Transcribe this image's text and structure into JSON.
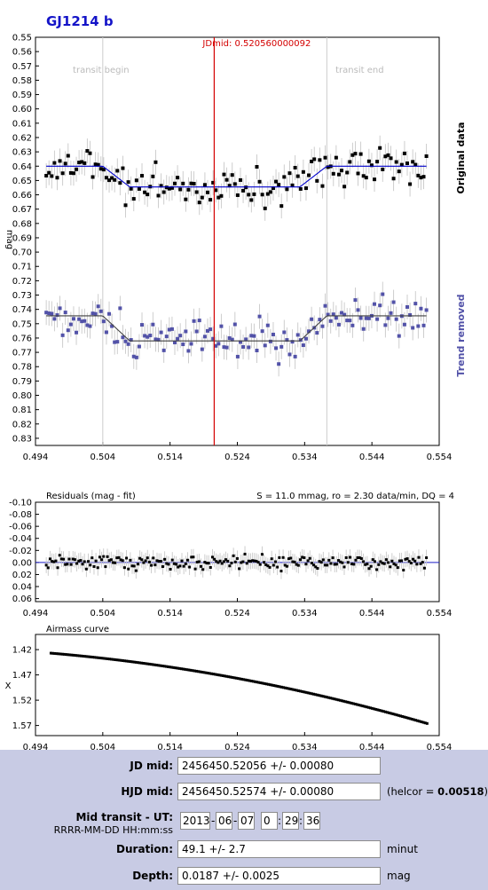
{
  "chart_data": [
    {
      "type": "scatter",
      "title": "GJ1214 b",
      "xlabel": "",
      "ylabel": "mag",
      "xlim": [
        0.494,
        0.554
      ],
      "ylim": [
        0.55,
        0.835
      ],
      "y_inverted": true,
      "x_ticks": [
        "0.494",
        "0.504",
        "0.514",
        "0.524",
        "0.534",
        "0.544",
        "0.554"
      ],
      "y_ticks": [
        "0.55",
        "0.56",
        "0.57",
        "0.58",
        "0.59",
        "0.60",
        "0.61",
        "0.62",
        "0.63",
        "0.64",
        "0.65",
        "0.66",
        "0.67",
        "0.68",
        "0.69",
        "0.70",
        "0.71",
        "0.72",
        "0.73",
        "0.74",
        "0.75",
        "0.76",
        "0.77",
        "0.78",
        "0.79",
        "0.80",
        "0.81",
        "0.82",
        "0.83"
      ],
      "annotations": {
        "jdmid": "JDmid: 0.520560000092",
        "transit_begin": "transit begin",
        "transit_end": "transit end"
      },
      "markers": {
        "jdmid_x": 0.52056,
        "transit_begin_x": 0.504,
        "transit_end_x": 0.5373
      },
      "series": [
        {
          "name": "Original data",
          "color": "#000000",
          "baseline": 0.64,
          "depth": 0.0145,
          "noise": 0.013
        },
        {
          "name": "Trend removed",
          "color": "#5252a8",
          "baseline": 0.7445,
          "depth": 0.0175,
          "noise": 0.013
        }
      ],
      "model_colors": [
        "#0000cc",
        "#404040"
      ],
      "grid": false
    },
    {
      "type": "scatter",
      "title": "Residuals (mag - fit)",
      "stats": "S = 11.0 mmag, ro = 2.30 data/min, DQ = 4",
      "xlim": [
        0.494,
        0.554
      ],
      "ylim": [
        -0.1,
        0.065
      ],
      "y_inverted": true,
      "x_ticks": [
        "0.494",
        "0.504",
        "0.514",
        "0.524",
        "0.534",
        "0.544",
        "0.554"
      ],
      "y_ticks": [
        "-0.10",
        "-0.08",
        "-0.06",
        "-0.04",
        "-0.02",
        "0.00",
        "0.02",
        "0.04",
        "0.06"
      ],
      "noise": 0.011
    },
    {
      "type": "scatter",
      "title": "Airmass curve",
      "ylabel": "X",
      "xlim": [
        0.494,
        0.554
      ],
      "ylim": [
        1.39,
        1.59
      ],
      "y_inverted": true,
      "x_ticks": [
        "0.494",
        "0.504",
        "0.514",
        "0.524",
        "0.534",
        "0.544",
        "0.554"
      ],
      "y_ticks": [
        "1.42",
        "1.47",
        "1.52",
        "1.57"
      ],
      "x_range": [
        0.4963,
        0.5522
      ],
      "y_range": [
        1.427,
        1.566
      ]
    }
  ],
  "form": {
    "jd_mid_label": "JD mid:",
    "jd_mid_value": "2456450.52056 +/- 0.00080",
    "hjd_mid_label": "HJD mid:",
    "hjd_mid_value": "2456450.52574 +/- 0.00080",
    "helcor_prefix": "(helcor = ",
    "helcor_value": "0.00518",
    "helcor_suffix": ")",
    "mid_transit_label": "Mid transit - UT:",
    "mid_transit_format": "RRRR-MM-DD HH:mm:ss",
    "ut_year": "2013",
    "ut_month": "06",
    "ut_day": "07",
    "ut_hour": "0",
    "ut_minute": "29",
    "ut_second": "36",
    "duration_label": "Duration:",
    "duration_value": "49.1 +/- 2.7",
    "duration_unit": "minut",
    "depth_label": "Depth:",
    "depth_value": "0.0187 +/- 0.0025",
    "depth_unit": "mag"
  }
}
